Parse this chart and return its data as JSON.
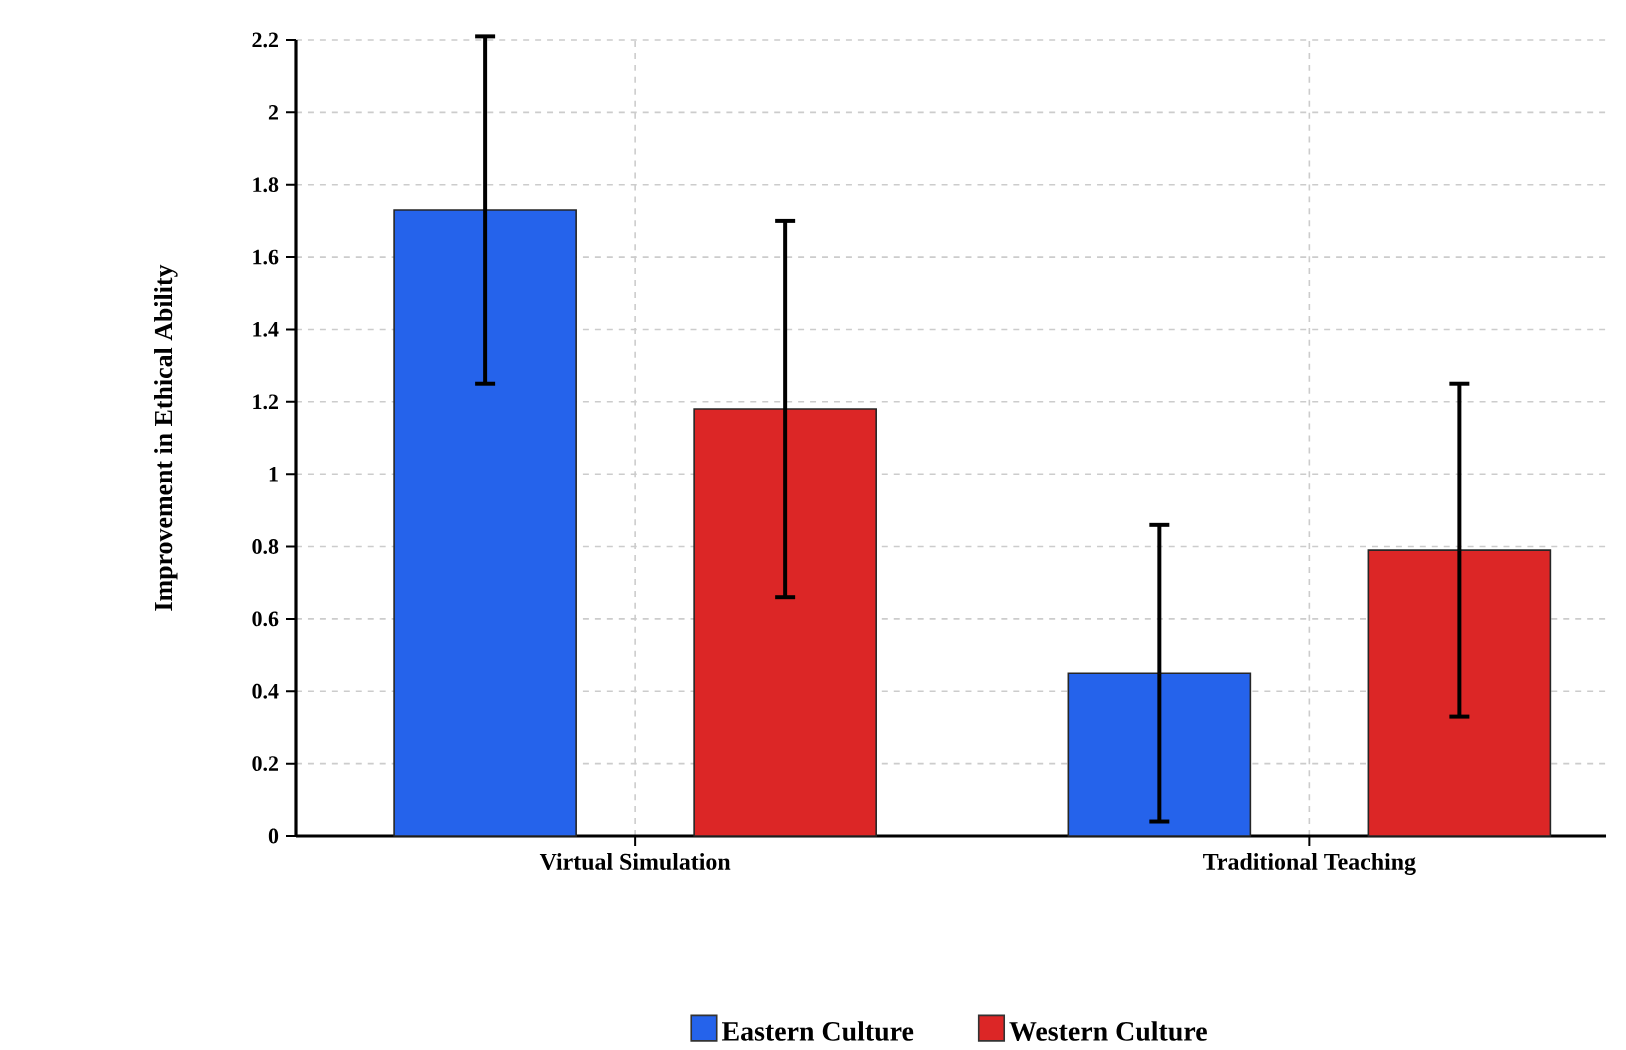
{
  "chart_data": {
    "type": "bar",
    "ylabel": "Improvement in Ethical Ability",
    "categories": [
      "Virtual Simulation",
      "Traditional Teaching"
    ],
    "series": [
      {
        "name": "Eastern Culture",
        "color": "#2563eb",
        "values": [
          1.73,
          0.45
        ],
        "errors": [
          0.48,
          0.41
        ]
      },
      {
        "name": "Western Culture",
        "color": "#dc2626",
        "values": [
          1.18,
          0.79
        ],
        "errors": [
          0.52,
          0.46
        ]
      }
    ],
    "ylim": [
      0,
      2.2
    ],
    "yticks": [
      0,
      0.2,
      0.4,
      0.6,
      0.8,
      1,
      1.2,
      1.4,
      1.6,
      1.8,
      2,
      2.2
    ],
    "grid": true,
    "legend": "bottom"
  }
}
